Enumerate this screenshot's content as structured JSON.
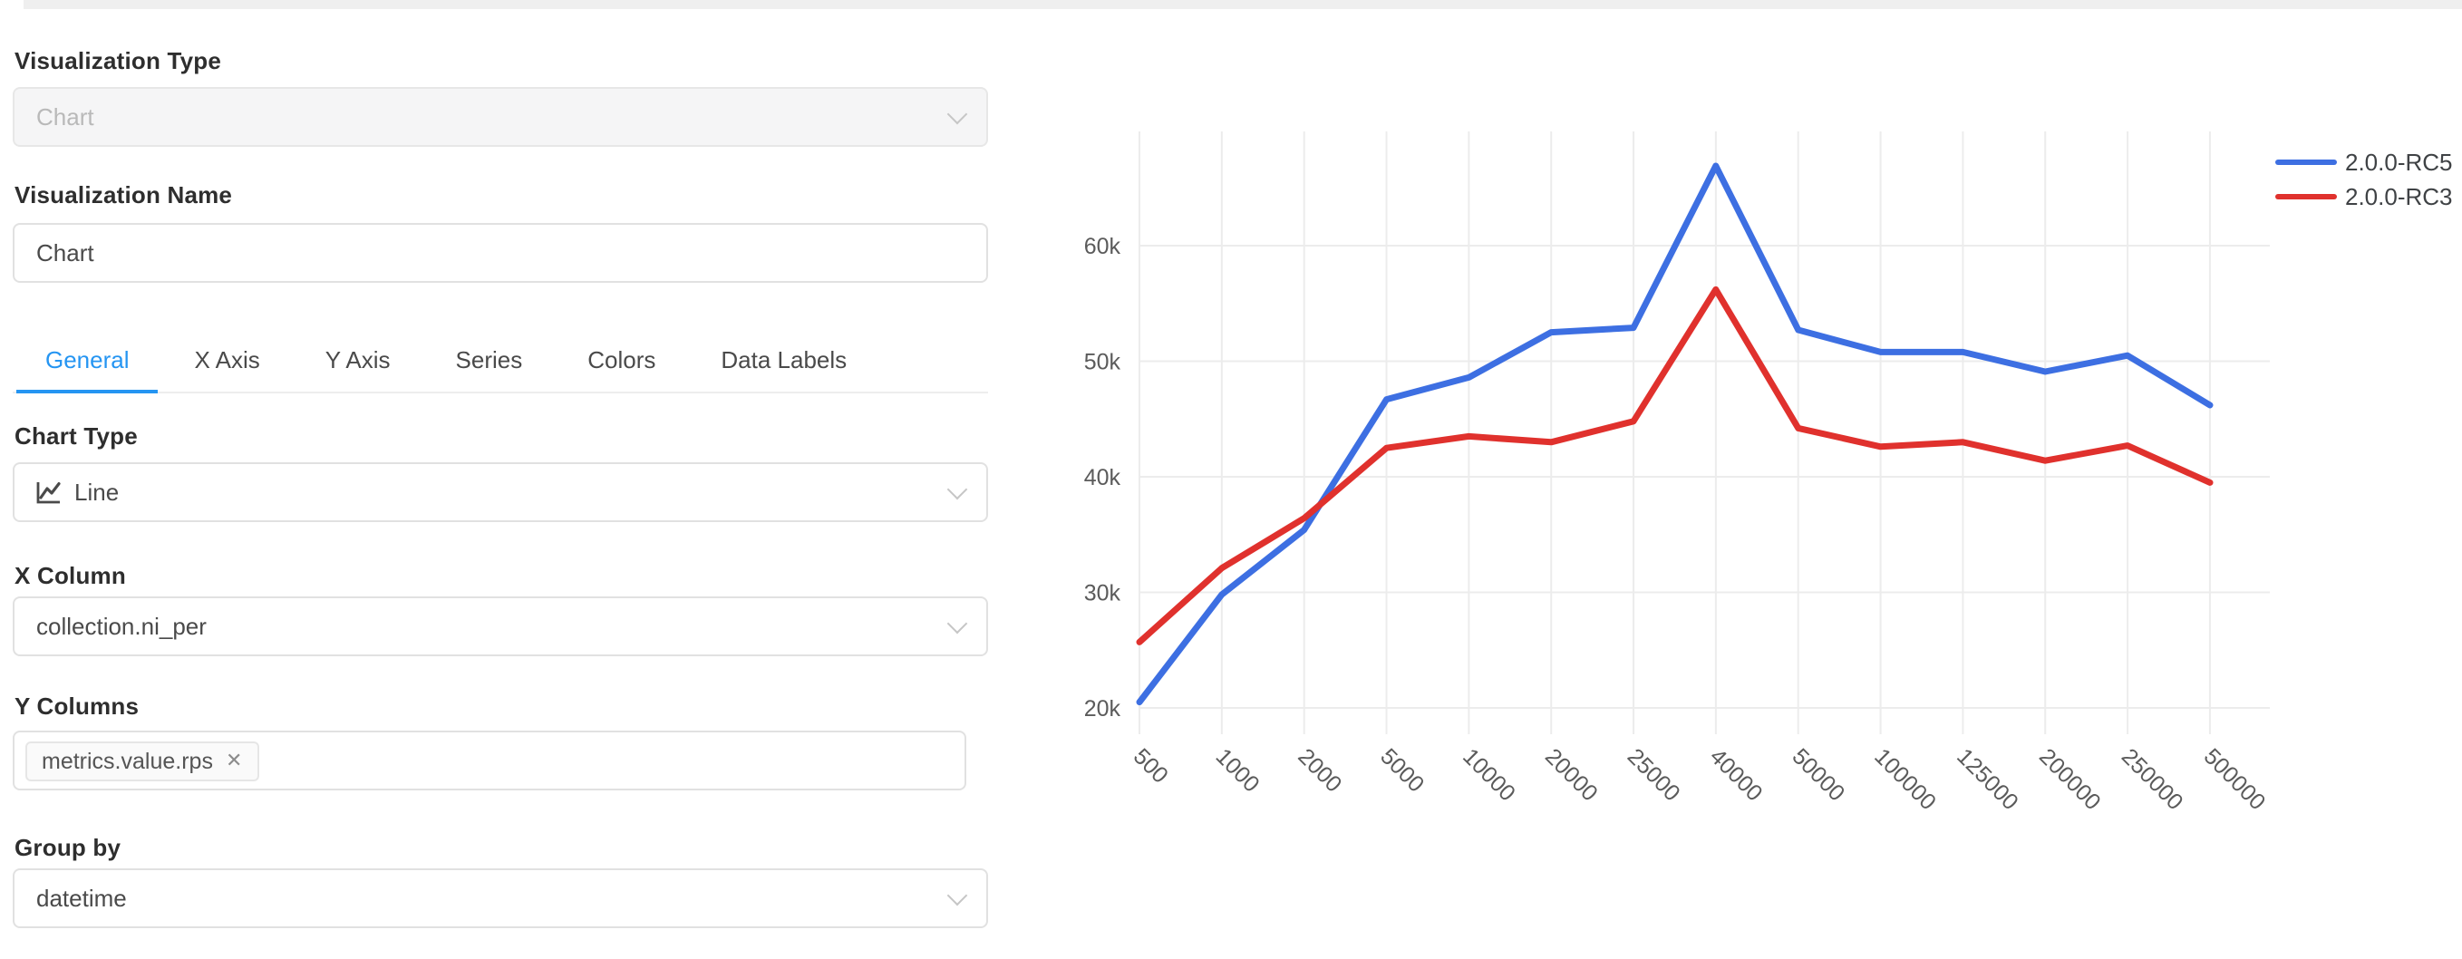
{
  "panel": {
    "visualization_type": {
      "label": "Visualization Type",
      "value": "Chart"
    },
    "visualization_name": {
      "label": "Visualization Name",
      "value": "Chart"
    },
    "tabs": [
      {
        "label": "General",
        "active": true
      },
      {
        "label": "X Axis",
        "active": false
      },
      {
        "label": "Y Axis",
        "active": false
      },
      {
        "label": "Series",
        "active": false
      },
      {
        "label": "Colors",
        "active": false
      },
      {
        "label": "Data Labels",
        "active": false
      }
    ],
    "chart_type": {
      "label": "Chart Type",
      "value": "Line",
      "icon": "line-chart-icon"
    },
    "x_column": {
      "label": "X Column",
      "value": "collection.ni_per"
    },
    "y_columns": {
      "label": "Y Columns",
      "tags": [
        {
          "text": "metrics.value.rps",
          "remove_glyph": "✕"
        }
      ]
    },
    "group_by": {
      "label": "Group by",
      "value": "datetime"
    }
  },
  "colors": {
    "accent_blue": "#2595f2",
    "series_blue": "#3D6FE2",
    "series_red": "#E0312D",
    "grid": "#ececec",
    "axis_text": "#5b5b5b",
    "legend_text": "#3f4245"
  },
  "chart_data": {
    "type": "line",
    "x_tick_labels": [
      "500",
      "1000",
      "2000",
      "5000",
      "10000",
      "20000",
      "25000",
      "40000",
      "50000",
      "100000",
      "125000",
      "200000",
      "250000",
      "500000"
    ],
    "series": [
      {
        "name": "2.0.0-RC5",
        "color": "#3D6FE2",
        "values": [
          20500,
          29800,
          35400,
          46700,
          48600,
          52500,
          52900,
          66900,
          52700,
          50800,
          50800,
          49100,
          50500,
          46200
        ]
      },
      {
        "name": "2.0.0-RC3",
        "color": "#E0312D",
        "values": [
          25700,
          32100,
          36400,
          42500,
          43500,
          43000,
          44800,
          56200,
          44200,
          42600,
          43000,
          41400,
          42700,
          39500
        ]
      }
    ],
    "y_ticks": [
      20000,
      30000,
      40000,
      50000,
      60000
    ],
    "y_tick_labels": [
      "20k",
      "30k",
      "40k",
      "50k",
      "60k"
    ],
    "ylim": [
      17500,
      70000
    ],
    "grid": true,
    "legend_position": "top-right",
    "title": "",
    "xlabel": "",
    "ylabel": ""
  }
}
